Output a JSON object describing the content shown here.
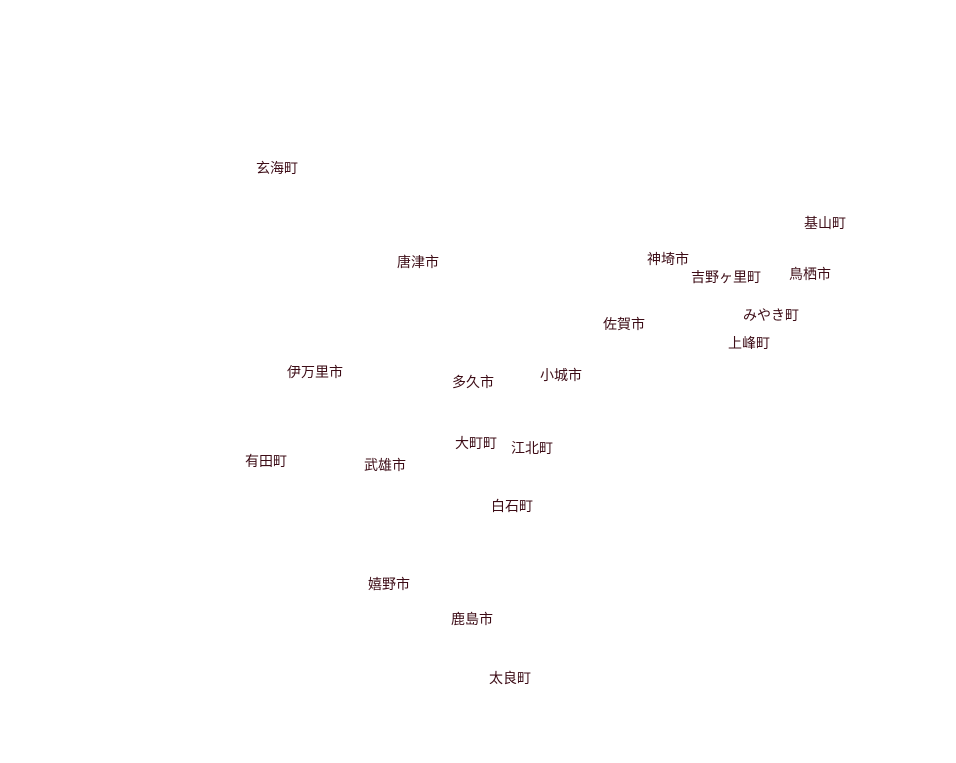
{
  "map": {
    "label_color": "#3d0c16",
    "background": "#ffffff",
    "places": [
      {
        "id": "genkai",
        "name": "玄海町"
      },
      {
        "id": "kiyama",
        "name": "基山町"
      },
      {
        "id": "karatsu",
        "name": "唐津市"
      },
      {
        "id": "kanzaki",
        "name": "神埼市"
      },
      {
        "id": "yoshinogari",
        "name": "吉野ヶ里町"
      },
      {
        "id": "tosu",
        "name": "鳥栖市"
      },
      {
        "id": "miyaki",
        "name": "みやき町"
      },
      {
        "id": "saga",
        "name": "佐賀市"
      },
      {
        "id": "kamimine",
        "name": "上峰町"
      },
      {
        "id": "imari",
        "name": "伊万里市"
      },
      {
        "id": "ogi",
        "name": "小城市"
      },
      {
        "id": "taku",
        "name": "多久市"
      },
      {
        "id": "omachi",
        "name": "大町町"
      },
      {
        "id": "kohoku",
        "name": "江北町"
      },
      {
        "id": "arita",
        "name": "有田町"
      },
      {
        "id": "takeo",
        "name": "武雄市"
      },
      {
        "id": "shiroishi",
        "name": "白石町"
      },
      {
        "id": "ureshino",
        "name": "嬉野市"
      },
      {
        "id": "kashima",
        "name": "鹿島市"
      },
      {
        "id": "tara",
        "name": "太良町"
      }
    ]
  }
}
